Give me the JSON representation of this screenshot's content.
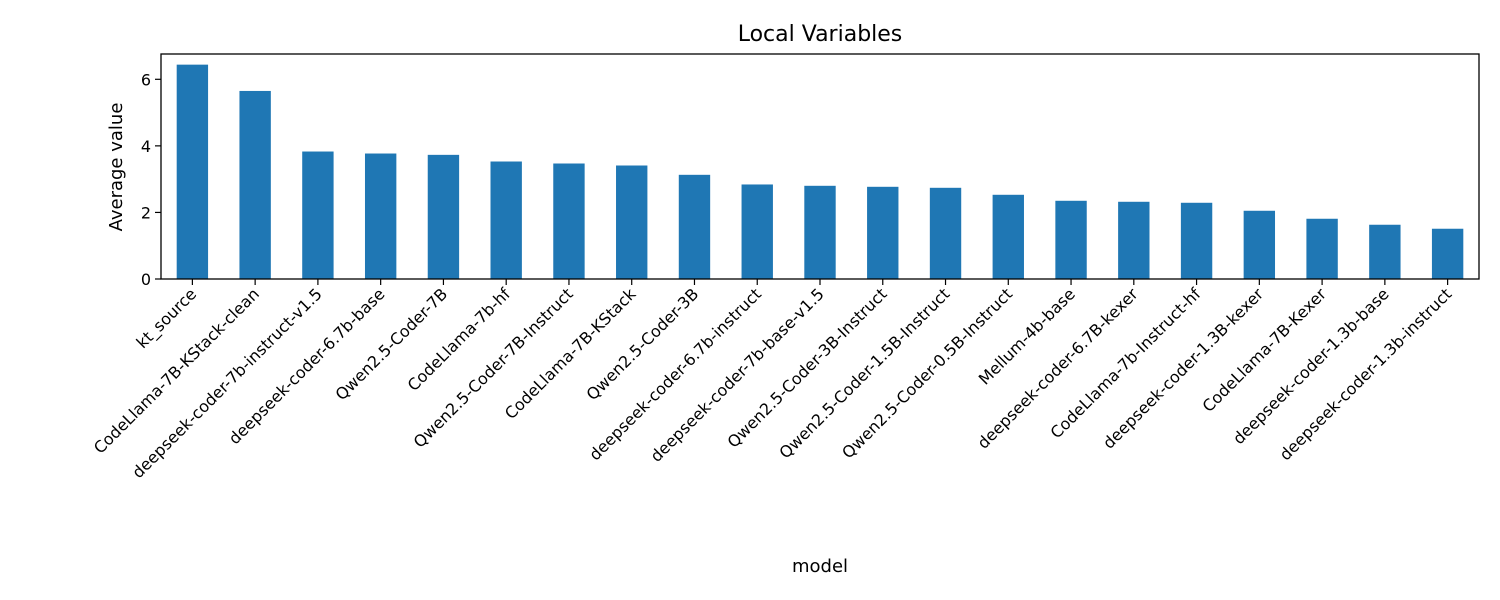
{
  "chart_data": {
    "type": "bar",
    "title": "Local Variables",
    "xlabel": "model",
    "ylabel": "Average value",
    "ylim": [
      0,
      6.76
    ],
    "yticks": [
      0,
      2,
      4,
      6
    ],
    "grid": false,
    "bar_color": "#1f77b4",
    "categories": [
      "kt_source",
      "CodeLlama-7B-KStack-clean",
      "deepseek-coder-7b-instruct-v1.5",
      "deepseek-coder-6.7b-base",
      "Qwen2.5-Coder-7B",
      "CodeLlama-7b-hf",
      "Qwen2.5-Coder-7B-Instruct",
      "CodeLlama-7B-KStack",
      "Qwen2.5-Coder-3B",
      "deepseek-coder-6.7b-instruct",
      "deepseek-coder-7b-base-v1.5",
      "Qwen2.5-Coder-3B-Instruct",
      "Qwen2.5-Coder-1.5B-Instruct",
      "Qwen2.5-Coder-0.5B-Instruct",
      "Mellum-4b-base",
      "deepseek-coder-6.7B-kexer",
      "CodeLlama-7b-Instruct-hf",
      "deepseek-coder-1.3B-kexer",
      "CodeLlama-7B-Kexer",
      "deepseek-coder-1.3b-base",
      "deepseek-coder-1.3b-instruct"
    ],
    "values": [
      6.44,
      5.65,
      3.83,
      3.77,
      3.73,
      3.53,
      3.47,
      3.41,
      3.13,
      2.84,
      2.8,
      2.77,
      2.74,
      2.53,
      2.35,
      2.32,
      2.29,
      2.05,
      1.81,
      1.63,
      1.51
    ]
  }
}
